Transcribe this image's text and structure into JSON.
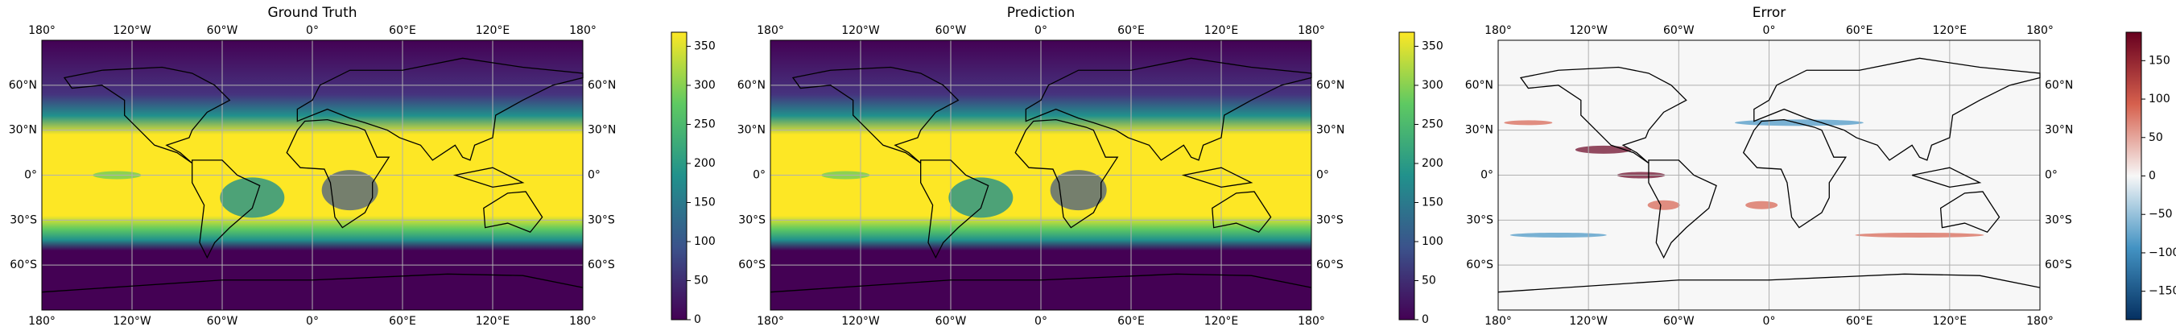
{
  "panels": [
    {
      "title": "Ground Truth",
      "xlim": [
        -180,
        180
      ],
      "ylim": [
        -90,
        90
      ],
      "xticks": [
        {
          "value": -180,
          "label": "180°"
        },
        {
          "value": -120,
          "label": "120°W"
        },
        {
          "value": -60,
          "label": "60°W"
        },
        {
          "value": 0,
          "label": "0°"
        },
        {
          "value": 60,
          "label": "60°E"
        },
        {
          "value": 120,
          "label": "120°E"
        },
        {
          "value": 180,
          "label": "180°"
        }
      ],
      "yticks": [
        {
          "value": 60,
          "label": "60°N"
        },
        {
          "value": 30,
          "label": "30°N"
        },
        {
          "value": 0,
          "label": "0°"
        },
        {
          "value": -30,
          "label": "30°S"
        },
        {
          "value": -60,
          "label": "60°S"
        }
      ],
      "colorbar": {
        "lim": [
          0,
          368
        ],
        "ticks": [
          0,
          50,
          100,
          150,
          200,
          250,
          300,
          350
        ],
        "colors": [
          "#440154",
          "#3b528b",
          "#21918c",
          "#5ec962",
          "#fde725"
        ]
      }
    },
    {
      "title": "Prediction",
      "xlim": [
        -180,
        180
      ],
      "ylim": [
        -90,
        90
      ],
      "xticks": [
        {
          "value": -180,
          "label": "180°"
        },
        {
          "value": -120,
          "label": "120°W"
        },
        {
          "value": -60,
          "label": "60°W"
        },
        {
          "value": 0,
          "label": "0°"
        },
        {
          "value": 60,
          "label": "60°E"
        },
        {
          "value": 120,
          "label": "120°E"
        },
        {
          "value": 180,
          "label": "180°"
        }
      ],
      "yticks": [
        {
          "value": 60,
          "label": "60°N"
        },
        {
          "value": 30,
          "label": "30°N"
        },
        {
          "value": 0,
          "label": "0°"
        },
        {
          "value": -30,
          "label": "30°S"
        },
        {
          "value": -60,
          "label": "60°S"
        }
      ],
      "colorbar": {
        "lim": [
          0,
          368
        ],
        "ticks": [
          0,
          50,
          100,
          150,
          200,
          250,
          300,
          350
        ],
        "colors": [
          "#440154",
          "#3b528b",
          "#21918c",
          "#5ec962",
          "#fde725"
        ]
      }
    },
    {
      "title": "Error",
      "xlim": [
        -180,
        180
      ],
      "ylim": [
        -90,
        90
      ],
      "xticks": [
        {
          "value": -180,
          "label": "180°"
        },
        {
          "value": -120,
          "label": "120°W"
        },
        {
          "value": -60,
          "label": "60°W"
        },
        {
          "value": 0,
          "label": "0°"
        },
        {
          "value": 60,
          "label": "60°E"
        },
        {
          "value": 120,
          "label": "120°E"
        },
        {
          "value": 180,
          "label": "180°"
        }
      ],
      "yticks": [
        {
          "value": 60,
          "label": "60°N"
        },
        {
          "value": 30,
          "label": "30°N"
        },
        {
          "value": 0,
          "label": "0°"
        },
        {
          "value": -30,
          "label": "30°S"
        },
        {
          "value": -60,
          "label": "60°S"
        }
      ],
      "colorbar": {
        "lim": [
          -187,
          187
        ],
        "ticks": [
          {
            "value": -150,
            "label": "−150"
          },
          {
            "value": -100,
            "label": "−100"
          },
          {
            "value": -50,
            "label": "−50"
          },
          0,
          50,
          100,
          150
        ],
        "colors": [
          "#053061",
          "#4393c3",
          "#f7f7f7",
          "#d6604d",
          "#67001f"
        ]
      }
    }
  ]
}
